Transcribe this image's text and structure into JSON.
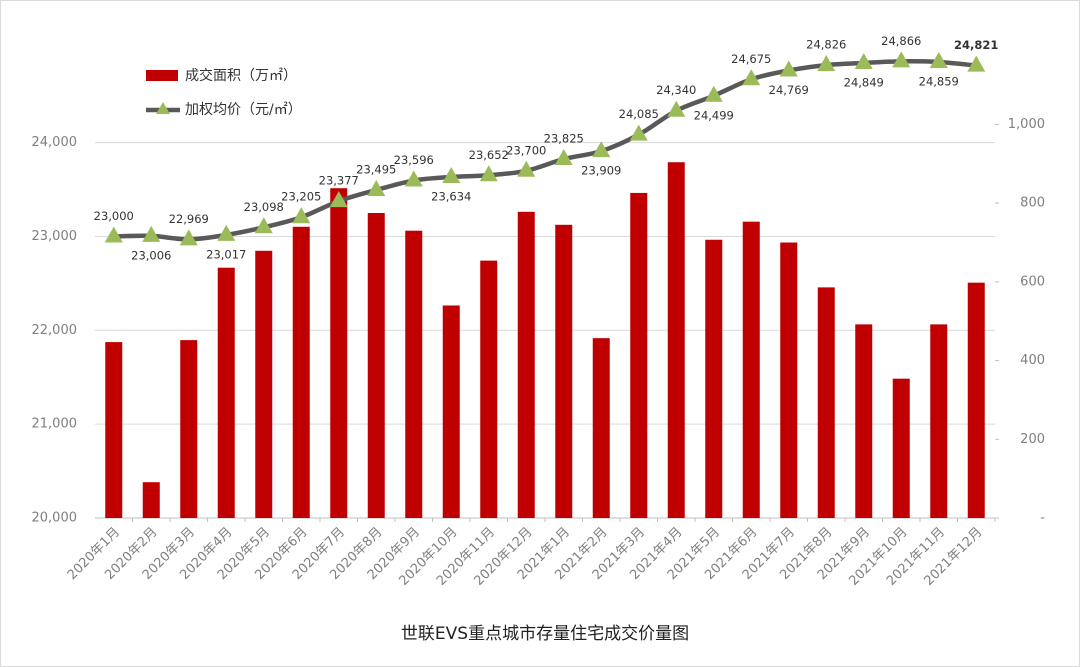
{
  "chart_data": {
    "type": "bar_line",
    "title": "世联EVS重点城市存量住宅成交价量图",
    "categories": [
      "2020年1月",
      "2020年2月",
      "2020年3月",
      "2020年4月",
      "2020年5月",
      "2020年6月",
      "2020年7月",
      "2020年8月",
      "2020年9月",
      "2020年10月",
      "2020年11月",
      "2020年12月",
      "2021年1月",
      "2021年2月",
      "2021年3月",
      "2021年4月",
      "2021年5月",
      "2021年6月",
      "2021年7月",
      "2021年8月",
      "2021年9月",
      "2021年10月",
      "2021年11月",
      "2021年12月"
    ],
    "series": [
      {
        "name": "成交面积（万㎡）",
        "type": "bar",
        "axis": "y2",
        "color": "#c00000",
        "values": [
          447,
          91,
          452,
          636,
          679,
          740,
          838,
          775,
          730,
          540,
          654,
          778,
          745,
          457,
          826,
          904,
          707,
          753,
          700,
          586,
          492,
          354,
          492,
          598
        ]
      },
      {
        "name": "加权均价（元/㎡）",
        "type": "line",
        "axis": "y",
        "color": "#595959",
        "marker_color": "#9bbb59",
        "values": [
          23000,
          23006,
          22969,
          23017,
          23098,
          23205,
          23377,
          23495,
          23596,
          23634,
          23652,
          23700,
          23825,
          23909,
          24085,
          24340,
          24499,
          24675,
          24769,
          24826,
          24849,
          24866,
          24859,
          24821
        ],
        "value_labels": [
          "23,000",
          "23,006",
          "22,969",
          "23,017",
          "23,098",
          "23,205",
          "23,377",
          "23,495",
          "23,596",
          "23,634",
          "23,652",
          "23,700",
          "23,825",
          "23,909",
          "24,085",
          "24,340",
          "24,499",
          "24,675",
          "24,769",
          "24,826",
          "24,849",
          "24,866",
          "24,859",
          "24,821"
        ]
      }
    ],
    "ylim": [
      20000,
      25200
    ],
    "yticks": [
      {
        "value": 20000,
        "label": "20,000"
      },
      {
        "value": 21000,
        "label": "21,000"
      },
      {
        "value": 22000,
        "label": "22,000"
      },
      {
        "value": 23000,
        "label": "23,000"
      },
      {
        "value": 24000,
        "label": "24,000"
      }
    ],
    "y2lim": [
      0,
      1240
    ],
    "y2ticks": [
      {
        "value": 0,
        "label": "-"
      },
      200,
      400,
      600,
      800,
      {
        "value": 1000,
        "label": "1,000"
      }
    ],
    "grid": true
  }
}
